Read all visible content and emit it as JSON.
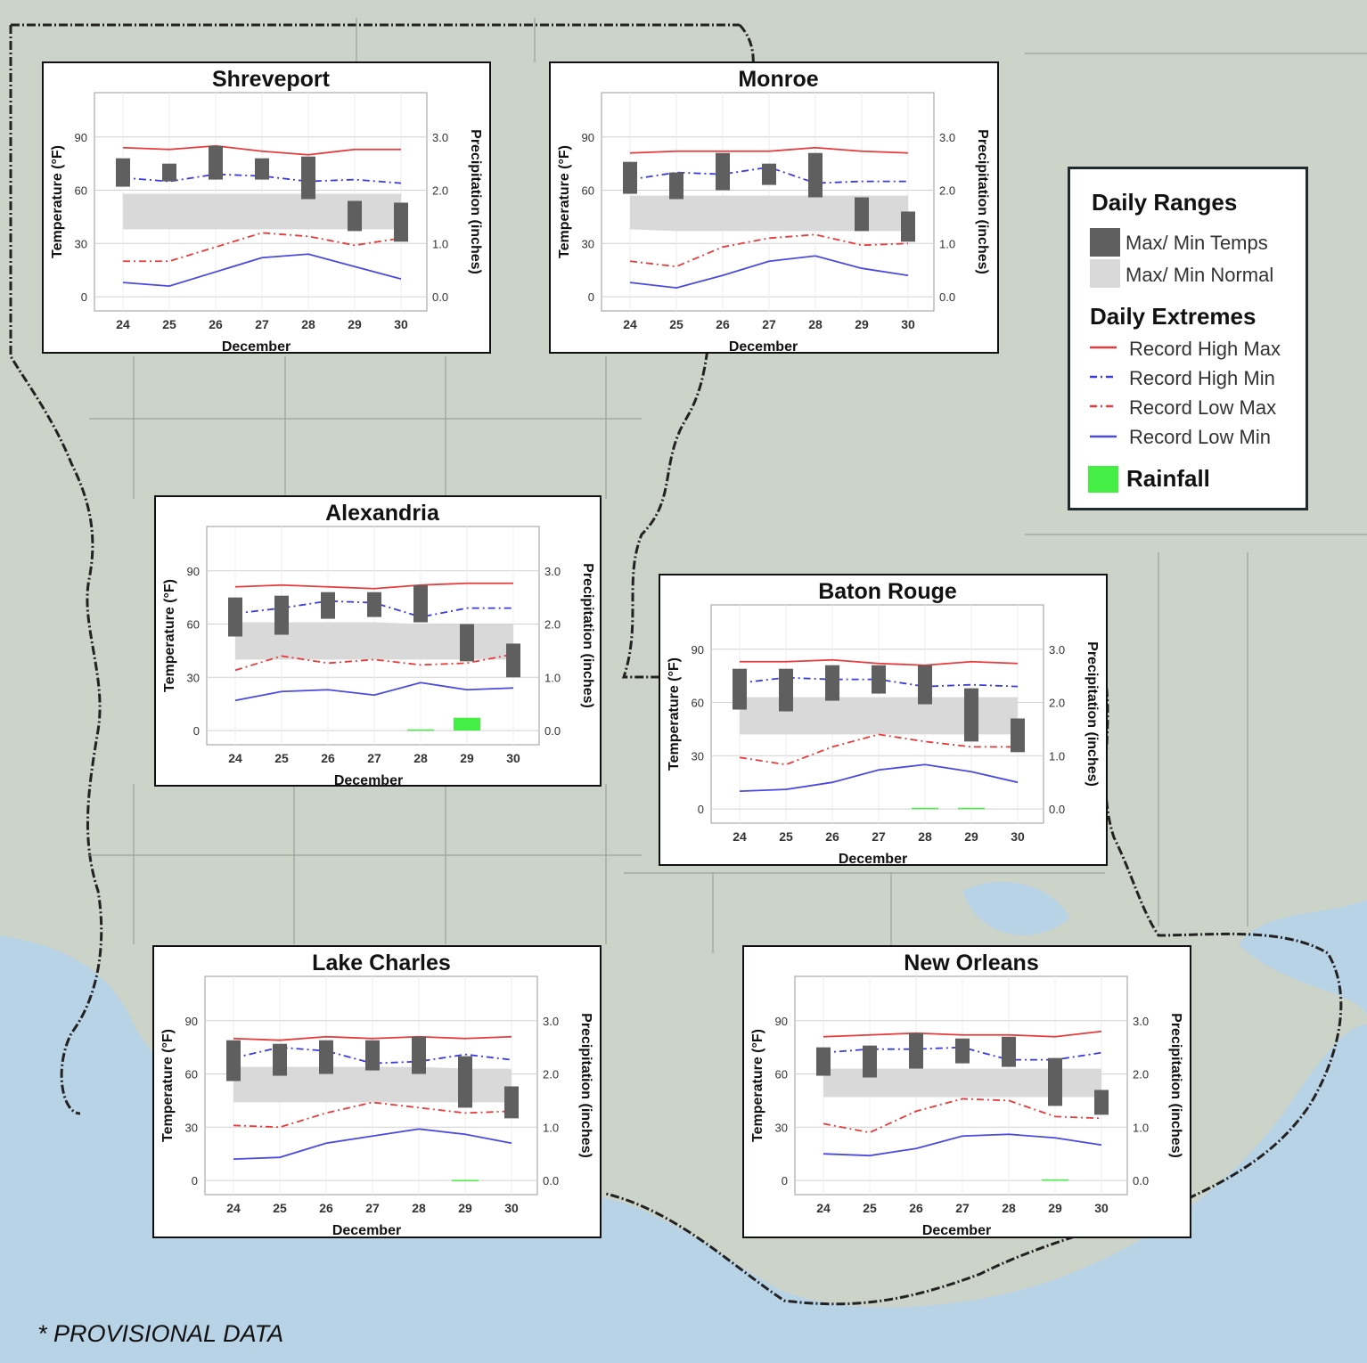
{
  "footer": {
    "note": "* PROVISIONAL DATA"
  },
  "legend": {
    "ranges_title": "Daily Ranges",
    "extremes_title": "Daily Extremes",
    "items": {
      "obs": "Max/ Min Temps",
      "normal": "Max/ Min Normal",
      "rhmax": "Record High Max",
      "rhmin": "Record High Min",
      "rlmax": "Record Low Max",
      "rlmin": "Record Low Min",
      "rain": "Rainfall"
    }
  },
  "colors": {
    "obs": "#5f5f5f",
    "normal": "#d9d9d9",
    "record_high_max": "#e83a3a",
    "record_high_min": "#3a3ae0",
    "record_low_max": "#e83a3a",
    "record_low_min": "#4a4ae0",
    "rain": "#44ee44",
    "map_land": "#ccd3c8",
    "map_water": "#b9d3e6"
  },
  "chart_data": [
    {
      "type": "bar",
      "title": "Shreveport",
      "xlabel": "December",
      "ylabel": "Temperature (°F)",
      "y2label": "Precipitation (inches)",
      "ylim": [
        -8,
        115
      ],
      "y2lim": [
        -0.267,
        3.833
      ],
      "yticks": [
        0,
        30,
        60,
        90
      ],
      "y2ticks": [
        "0.0",
        "1.0",
        "2.0",
        "3.0"
      ],
      "categories": [
        "24",
        "25",
        "26",
        "27",
        "28",
        "29",
        "30"
      ],
      "observed_max": [
        78,
        75,
        85,
        78,
        79,
        54,
        53
      ],
      "observed_min": [
        62,
        65,
        66,
        66,
        55,
        37,
        31
      ],
      "normal_max": [
        58,
        58,
        58,
        58,
        58,
        58,
        58
      ],
      "normal_min": [
        38,
        38,
        38,
        38,
        38,
        38,
        38
      ],
      "record_high_max": [
        84,
        83,
        85,
        82,
        80,
        83,
        83
      ],
      "record_high_min": [
        67,
        65,
        69,
        68,
        65,
        66,
        64
      ],
      "record_low_max": [
        20,
        20,
        28,
        36,
        34,
        29,
        33
      ],
      "record_low_min": [
        8,
        6,
        14,
        22,
        24,
        17,
        10
      ],
      "rain": [
        0,
        0,
        0,
        0,
        0,
        0,
        0
      ]
    },
    {
      "type": "bar",
      "title": "Monroe",
      "xlabel": "December",
      "ylabel": "Temperature (°F)",
      "y2label": "Precipitation (inches)",
      "ylim": [
        -8,
        115
      ],
      "y2lim": [
        -0.267,
        3.833
      ],
      "yticks": [
        0,
        30,
        60,
        90
      ],
      "y2ticks": [
        "0.0",
        "1.0",
        "2.0",
        "3.0"
      ],
      "categories": [
        "24",
        "25",
        "26",
        "27",
        "28",
        "29",
        "30"
      ],
      "observed_max": [
        76,
        70,
        81,
        75,
        81,
        56,
        48
      ],
      "observed_min": [
        58,
        55,
        60,
        63,
        56,
        37,
        31
      ],
      "normal_max": [
        57,
        57,
        57,
        57,
        57,
        57,
        57
      ],
      "normal_min": [
        38,
        37,
        37,
        37,
        37,
        37,
        37
      ],
      "record_high_max": [
        81,
        82,
        82,
        82,
        84,
        82,
        81
      ],
      "record_high_min": [
        66,
        70,
        69,
        73,
        64,
        65,
        65
      ],
      "record_low_max": [
        20,
        17,
        28,
        33,
        35,
        29,
        30
      ],
      "record_low_min": [
        8,
        5,
        12,
        20,
        23,
        16,
        12
      ],
      "rain": [
        0,
        0,
        0,
        0,
        0,
        0,
        0
      ]
    },
    {
      "type": "bar",
      "title": "Alexandria",
      "xlabel": "December",
      "ylabel": "Temperature (°F)",
      "y2label": "Precipitation (inches)",
      "ylim": [
        -8,
        115
      ],
      "y2lim": [
        -0.267,
        3.833
      ],
      "yticks": [
        0,
        30,
        60,
        90
      ],
      "y2ticks": [
        "0.0",
        "1.0",
        "2.0",
        "3.0"
      ],
      "categories": [
        "24",
        "25",
        "26",
        "27",
        "28",
        "29",
        "30"
      ],
      "observed_max": [
        75,
        76,
        78,
        78,
        82,
        60,
        49
      ],
      "observed_min": [
        53,
        54,
        63,
        64,
        61,
        39,
        30
      ],
      "normal_max": [
        61,
        61,
        61,
        61,
        60,
        60,
        60
      ],
      "normal_min": [
        40,
        40,
        40,
        40,
        40,
        40,
        40
      ],
      "record_high_max": [
        81,
        82,
        81,
        80,
        82,
        83,
        83
      ],
      "record_high_min": [
        66,
        69,
        73,
        72,
        64,
        69,
        69
      ],
      "record_low_max": [
        34,
        42,
        38,
        40,
        37,
        38,
        43
      ],
      "record_low_min": [
        17,
        22,
        23,
        20,
        27,
        23,
        24
      ],
      "rain": [
        0,
        0,
        0,
        0,
        0.02,
        0.24,
        0
      ]
    },
    {
      "type": "bar",
      "title": "Baton Rouge",
      "xlabel": "December",
      "ylabel": "Temperature (°F)",
      "y2label": "Precipitation (inches)",
      "ylim": [
        -8,
        115
      ],
      "y2lim": [
        -0.267,
        3.833
      ],
      "yticks": [
        0,
        30,
        60,
        90
      ],
      "y2ticks": [
        "0.0",
        "1.0",
        "2.0",
        "3.0"
      ],
      "categories": [
        "24",
        "25",
        "26",
        "27",
        "28",
        "29",
        "30"
      ],
      "observed_max": [
        79,
        79,
        81,
        81,
        81,
        68,
        51
      ],
      "observed_min": [
        56,
        55,
        61,
        65,
        59,
        38,
        32
      ],
      "normal_max": [
        63,
        63,
        63,
        63,
        63,
        63,
        63
      ],
      "normal_min": [
        42,
        42,
        42,
        42,
        42,
        42,
        42
      ],
      "record_high_max": [
        83,
        83,
        84,
        82,
        81,
        83,
        82
      ],
      "record_high_min": [
        71,
        74,
        73,
        73,
        69,
        70,
        69
      ],
      "record_low_max": [
        29,
        25,
        35,
        42,
        38,
        35,
        35
      ],
      "record_low_min": [
        10,
        11,
        15,
        22,
        25,
        21,
        15
      ],
      "rain": [
        0,
        0,
        0,
        0,
        0.02,
        0.02,
        0
      ]
    },
    {
      "type": "bar",
      "title": "Lake Charles",
      "xlabel": "December",
      "ylabel": "Temperature (°F)",
      "y2label": "Precipitation (inches)",
      "ylim": [
        -8,
        115
      ],
      "y2lim": [
        -0.267,
        3.833
      ],
      "yticks": [
        0,
        30,
        60,
        90
      ],
      "y2ticks": [
        "0.0",
        "1.0",
        "2.0",
        "3.0"
      ],
      "categories": [
        "24",
        "25",
        "26",
        "27",
        "28",
        "29",
        "30"
      ],
      "observed_max": [
        79,
        77,
        79,
        79,
        81,
        70,
        53
      ],
      "observed_min": [
        56,
        59,
        60,
        62,
        60,
        41,
        35
      ],
      "normal_max": [
        64,
        64,
        64,
        64,
        64,
        63,
        63
      ],
      "normal_min": [
        44,
        44,
        44,
        44,
        44,
        44,
        44
      ],
      "record_high_max": [
        80,
        79,
        81,
        80,
        81,
        80,
        81
      ],
      "record_high_min": [
        69,
        75,
        73,
        66,
        67,
        71,
        68
      ],
      "record_low_max": [
        31,
        30,
        38,
        44,
        41,
        38,
        39
      ],
      "record_low_min": [
        12,
        13,
        21,
        25,
        29,
        26,
        21
      ],
      "rain": [
        0,
        0,
        0,
        0,
        0,
        0.01,
        0
      ]
    },
    {
      "type": "bar",
      "title": "New Orleans",
      "xlabel": "December",
      "ylabel": "Temperature (°F)",
      "y2label": "Precipitation (inches)",
      "ylim": [
        -8,
        115
      ],
      "y2lim": [
        -0.267,
        3.833
      ],
      "yticks": [
        0,
        30,
        60,
        90
      ],
      "y2ticks": [
        "0.0",
        "1.0",
        "2.0",
        "3.0"
      ],
      "categories": [
        "24",
        "25",
        "26",
        "27",
        "28",
        "29",
        "30"
      ],
      "observed_max": [
        75,
        76,
        83,
        80,
        81,
        69,
        51
      ],
      "observed_min": [
        59,
        58,
        63,
        66,
        64,
        42,
        37
      ],
      "normal_max": [
        63,
        63,
        63,
        63,
        63,
        63,
        63
      ],
      "normal_min": [
        47,
        47,
        47,
        47,
        47,
        47,
        47
      ],
      "record_high_max": [
        81,
        82,
        83,
        82,
        82,
        81,
        84
      ],
      "record_high_min": [
        72,
        74,
        74,
        75,
        68,
        68,
        72
      ],
      "record_low_max": [
        32,
        27,
        39,
        46,
        45,
        36,
        35
      ],
      "record_low_min": [
        15,
        14,
        18,
        25,
        26,
        24,
        20
      ],
      "rain": [
        0,
        0,
        0,
        0,
        0,
        0.02,
        0
      ]
    }
  ]
}
